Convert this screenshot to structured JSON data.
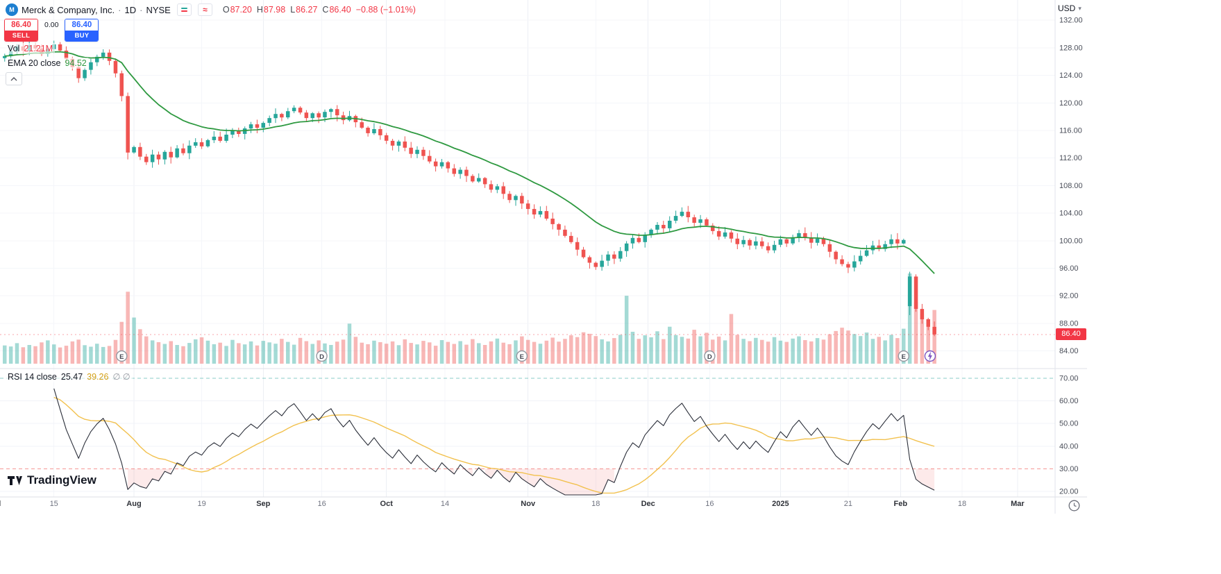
{
  "header": {
    "symbol_name": "Merck & Company, Inc.",
    "interval": "1D",
    "exchange": "NYSE",
    "separator": "·",
    "logo_letter": "M",
    "ohlc": [
      {
        "label": "O",
        "value": "87.20"
      },
      {
        "label": "H",
        "value": "87.98"
      },
      {
        "label": "L",
        "value": "86.27"
      },
      {
        "label": "C",
        "value": "86.40"
      }
    ],
    "change": "−0.88 (−1.01%)",
    "icons": {
      "toggle_wave": "≈",
      "currency_caret": "▾"
    }
  },
  "trade_panel": {
    "sell_price": "86.40",
    "sell_label": "SELL",
    "spread": "0.00",
    "buy_price": "86.40",
    "buy_label": "BUY"
  },
  "legends": {
    "volume_label": "Vol",
    "volume_value": "21.21M",
    "ema_title": "EMA 20 close",
    "ema_value": "94.52",
    "rsi_title": "RSI 14 close",
    "rsi_value": "25.47",
    "rsi_ma_value": "39.26",
    "rsi_flags": "∅ ∅"
  },
  "axes": {
    "currency": "USD",
    "last_price": "86.40",
    "price_ticks": [
      "132.00",
      "128.00",
      "124.00",
      "120.00",
      "116.00",
      "112.00",
      "108.00",
      "104.00",
      "100.00",
      "96.00",
      "92.00",
      "88.00",
      "84.00"
    ],
    "rsi_ticks": [
      "70.00",
      "60.00",
      "50.00",
      "40.00",
      "30.00",
      "20.00"
    ],
    "time_ticks": [
      {
        "label": "Jul",
        "i": -1.5,
        "major": true
      },
      {
        "label": "15",
        "i": 8,
        "major": false
      },
      {
        "label": "Aug",
        "i": 21,
        "major": true
      },
      {
        "label": "19",
        "i": 32,
        "major": false
      },
      {
        "label": "Sep",
        "i": 42,
        "major": true
      },
      {
        "label": "16",
        "i": 51.5,
        "major": false
      },
      {
        "label": "Oct",
        "i": 62,
        "major": true
      },
      {
        "label": "14",
        "i": 71.5,
        "major": false
      },
      {
        "label": "Nov",
        "i": 85,
        "major": true
      },
      {
        "label": "18",
        "i": 96,
        "major": false
      },
      {
        "label": "Dec",
        "i": 104.5,
        "major": true
      },
      {
        "label": "16",
        "i": 114.5,
        "major": false
      },
      {
        "label": "2025",
        "i": 126,
        "major": true
      },
      {
        "label": "21",
        "i": 137,
        "major": false
      },
      {
        "label": "Feb",
        "i": 145.5,
        "major": true
      },
      {
        "label": "18",
        "i": 155.5,
        "major": false
      },
      {
        "label": "Mar",
        "i": 164.5,
        "major": true
      }
    ]
  },
  "event_markers": [
    {
      "kind": "E",
      "i": 19
    },
    {
      "kind": "D",
      "i": 51.5
    },
    {
      "kind": "E",
      "i": 84
    },
    {
      "kind": "D",
      "i": 114.5
    },
    {
      "kind": "E",
      "i": 146
    },
    {
      "kind": "bolt",
      "i": 150.3
    }
  ],
  "footer": {
    "brand": "TradingView"
  },
  "colors": {
    "up": "#26a69a",
    "down": "#ef5350",
    "vol_up": "rgba(38,166,154,0.42)",
    "vol_down": "rgba(239,83,80,0.42)",
    "ema": "#2e9940",
    "rsi_line": "#2a2e39",
    "rsi_ma": "#f2c14e",
    "rsi_upper_band": "rgba(38,166,154,0.55)",
    "rsi_lower_band": "rgba(239,83,80,0.6)",
    "rsi_oversold_fill": "rgba(239,83,80,0.12)",
    "sell": "#f23645",
    "buy": "#2962ff",
    "last_price_tag_bg": "#f23645"
  },
  "chart_data": {
    "type": "candlestick",
    "title": "Merck & Company, Inc. · 1D · NYSE",
    "interval": "1D",
    "price_axis_range": [
      84,
      132
    ],
    "rsi_axis_range": [
      20,
      70
    ],
    "last_close": 86.4,
    "overlays": [
      {
        "name": "EMA",
        "length": 20,
        "current": 94.52
      },
      {
        "name": "Volume",
        "current_millions": 21.21
      },
      {
        "name": "RSI",
        "length": 14,
        "ma_length": 14,
        "upper_band": 70,
        "lower_band": 30,
        "current": 25.47,
        "ma_current": 39.26
      }
    ],
    "closes": [
      126.8,
      127.5,
      128.2,
      127.6,
      128.4,
      127.9,
      127.1,
      127.8,
      128.5,
      127.6,
      126.4,
      125.2,
      123.6,
      124.8,
      125.9,
      126.7,
      127.3,
      126.1,
      124.3,
      121.0,
      112.8,
      113.6,
      112.2,
      111.4,
      112.5,
      111.8,
      112.9,
      112.1,
      113.4,
      112.7,
      113.8,
      114.3,
      113.7,
      114.6,
      115.1,
      114.5,
      115.4,
      116.0,
      115.5,
      116.3,
      116.9,
      116.4,
      117.1,
      117.8,
      118.4,
      117.9,
      118.8,
      119.3,
      118.6,
      117.8,
      118.5,
      117.9,
      118.7,
      119.1,
      118.2,
      117.5,
      118.1,
      117.2,
      116.4,
      115.6,
      116.2,
      115.3,
      114.5,
      113.8,
      114.4,
      113.5,
      112.6,
      113.2,
      112.3,
      111.5,
      110.8,
      111.4,
      110.5,
      109.7,
      110.3,
      109.4,
      108.6,
      109.1,
      108.2,
      107.4,
      107.9,
      106.8,
      105.9,
      106.5,
      105.4,
      104.6,
      103.8,
      104.3,
      103.2,
      102.4,
      101.6,
      100.7,
      99.8,
      98.7,
      97.6,
      96.8,
      96.2,
      97.1,
      98.0,
      97.4,
      98.5,
      99.6,
      100.4,
      99.8,
      100.9,
      101.6,
      102.3,
      101.8,
      102.9,
      103.6,
      104.2,
      103.4,
      102.6,
      103.1,
      102.2,
      101.4,
      100.6,
      101.2,
      100.3,
      99.5,
      100.1,
      99.3,
      99.9,
      99.2,
      98.6,
      99.4,
      100.2,
      99.6,
      100.5,
      101.1,
      100.4,
      99.7,
      100.3,
      99.5,
      98.4,
      97.3,
      96.6,
      96.1,
      97.0,
      97.8,
      98.6,
      99.3,
      98.8,
      99.5,
      100.2,
      99.6,
      100.1,
      94.8,
      90.1,
      88.6,
      87.5,
      86.4
    ],
    "volumes_millions": [
      7.2,
      6.8,
      8.1,
      6.5,
      7.4,
      6.9,
      8.4,
      9.2,
      7.6,
      6.4,
      7.1,
      8.8,
      9.5,
      7.3,
      6.7,
      7.9,
      6.6,
      7.0,
      9.4,
      16.5,
      28.4,
      18.2,
      13.6,
      10.8,
      9.2,
      8.5,
      7.8,
      8.9,
      7.4,
      6.9,
      8.2,
      9.6,
      10.4,
      9.1,
      7.7,
      8.3,
      7.0,
      9.4,
      8.1,
      7.6,
      8.8,
      7.2,
      9.0,
      8.4,
      7.9,
      9.8,
      8.6,
      7.5,
      10.2,
      8.9,
      7.8,
      9.2,
      8.0,
      7.4,
      8.7,
      9.5,
      15.8,
      10.6,
      8.3,
      7.7,
      9.1,
      8.5,
      7.9,
      8.8,
      7.3,
      9.6,
      8.2,
      7.6,
      9.0,
      8.4,
      7.1,
      9.3,
      8.6,
      7.8,
      8.9,
      7.5,
      9.7,
      8.1,
      7.4,
      8.8,
      9.9,
      8.3,
      7.7,
      9.2,
      10.8,
      9.4,
      8.6,
      7.9,
      9.1,
      10.3,
      8.7,
      9.8,
      11.2,
      10.5,
      12.4,
      11.8,
      10.9,
      9.6,
      8.8,
      10.1,
      11.4,
      26.8,
      12.6,
      9.8,
      11.2,
      10.4,
      12.8,
      9.7,
      14.6,
      11.3,
      10.6,
      9.9,
      13.4,
      10.8,
      12.2,
      9.5,
      10.7,
      9.2,
      19.6,
      11.4,
      9.8,
      8.9,
      10.2,
      9.4,
      8.7,
      10.5,
      9.1,
      8.6,
      9.9,
      10.8,
      9.3,
      8.8,
      10.1,
      9.5,
      11.6,
      12.9,
      14.2,
      13.1,
      11.7,
      10.9,
      12.3,
      9.8,
      10.6,
      9.2,
      11.4,
      10.1,
      13.8,
      35.6,
      24.3,
      19.7,
      16.8,
      21.2
    ],
    "open_overrides": {
      "0": 126.5,
      "147": 90.5
    },
    "high_low_overrides": {
      "20": [
        121.5,
        111.8
      ],
      "147": [
        95.5,
        89.2
      ]
    }
  }
}
